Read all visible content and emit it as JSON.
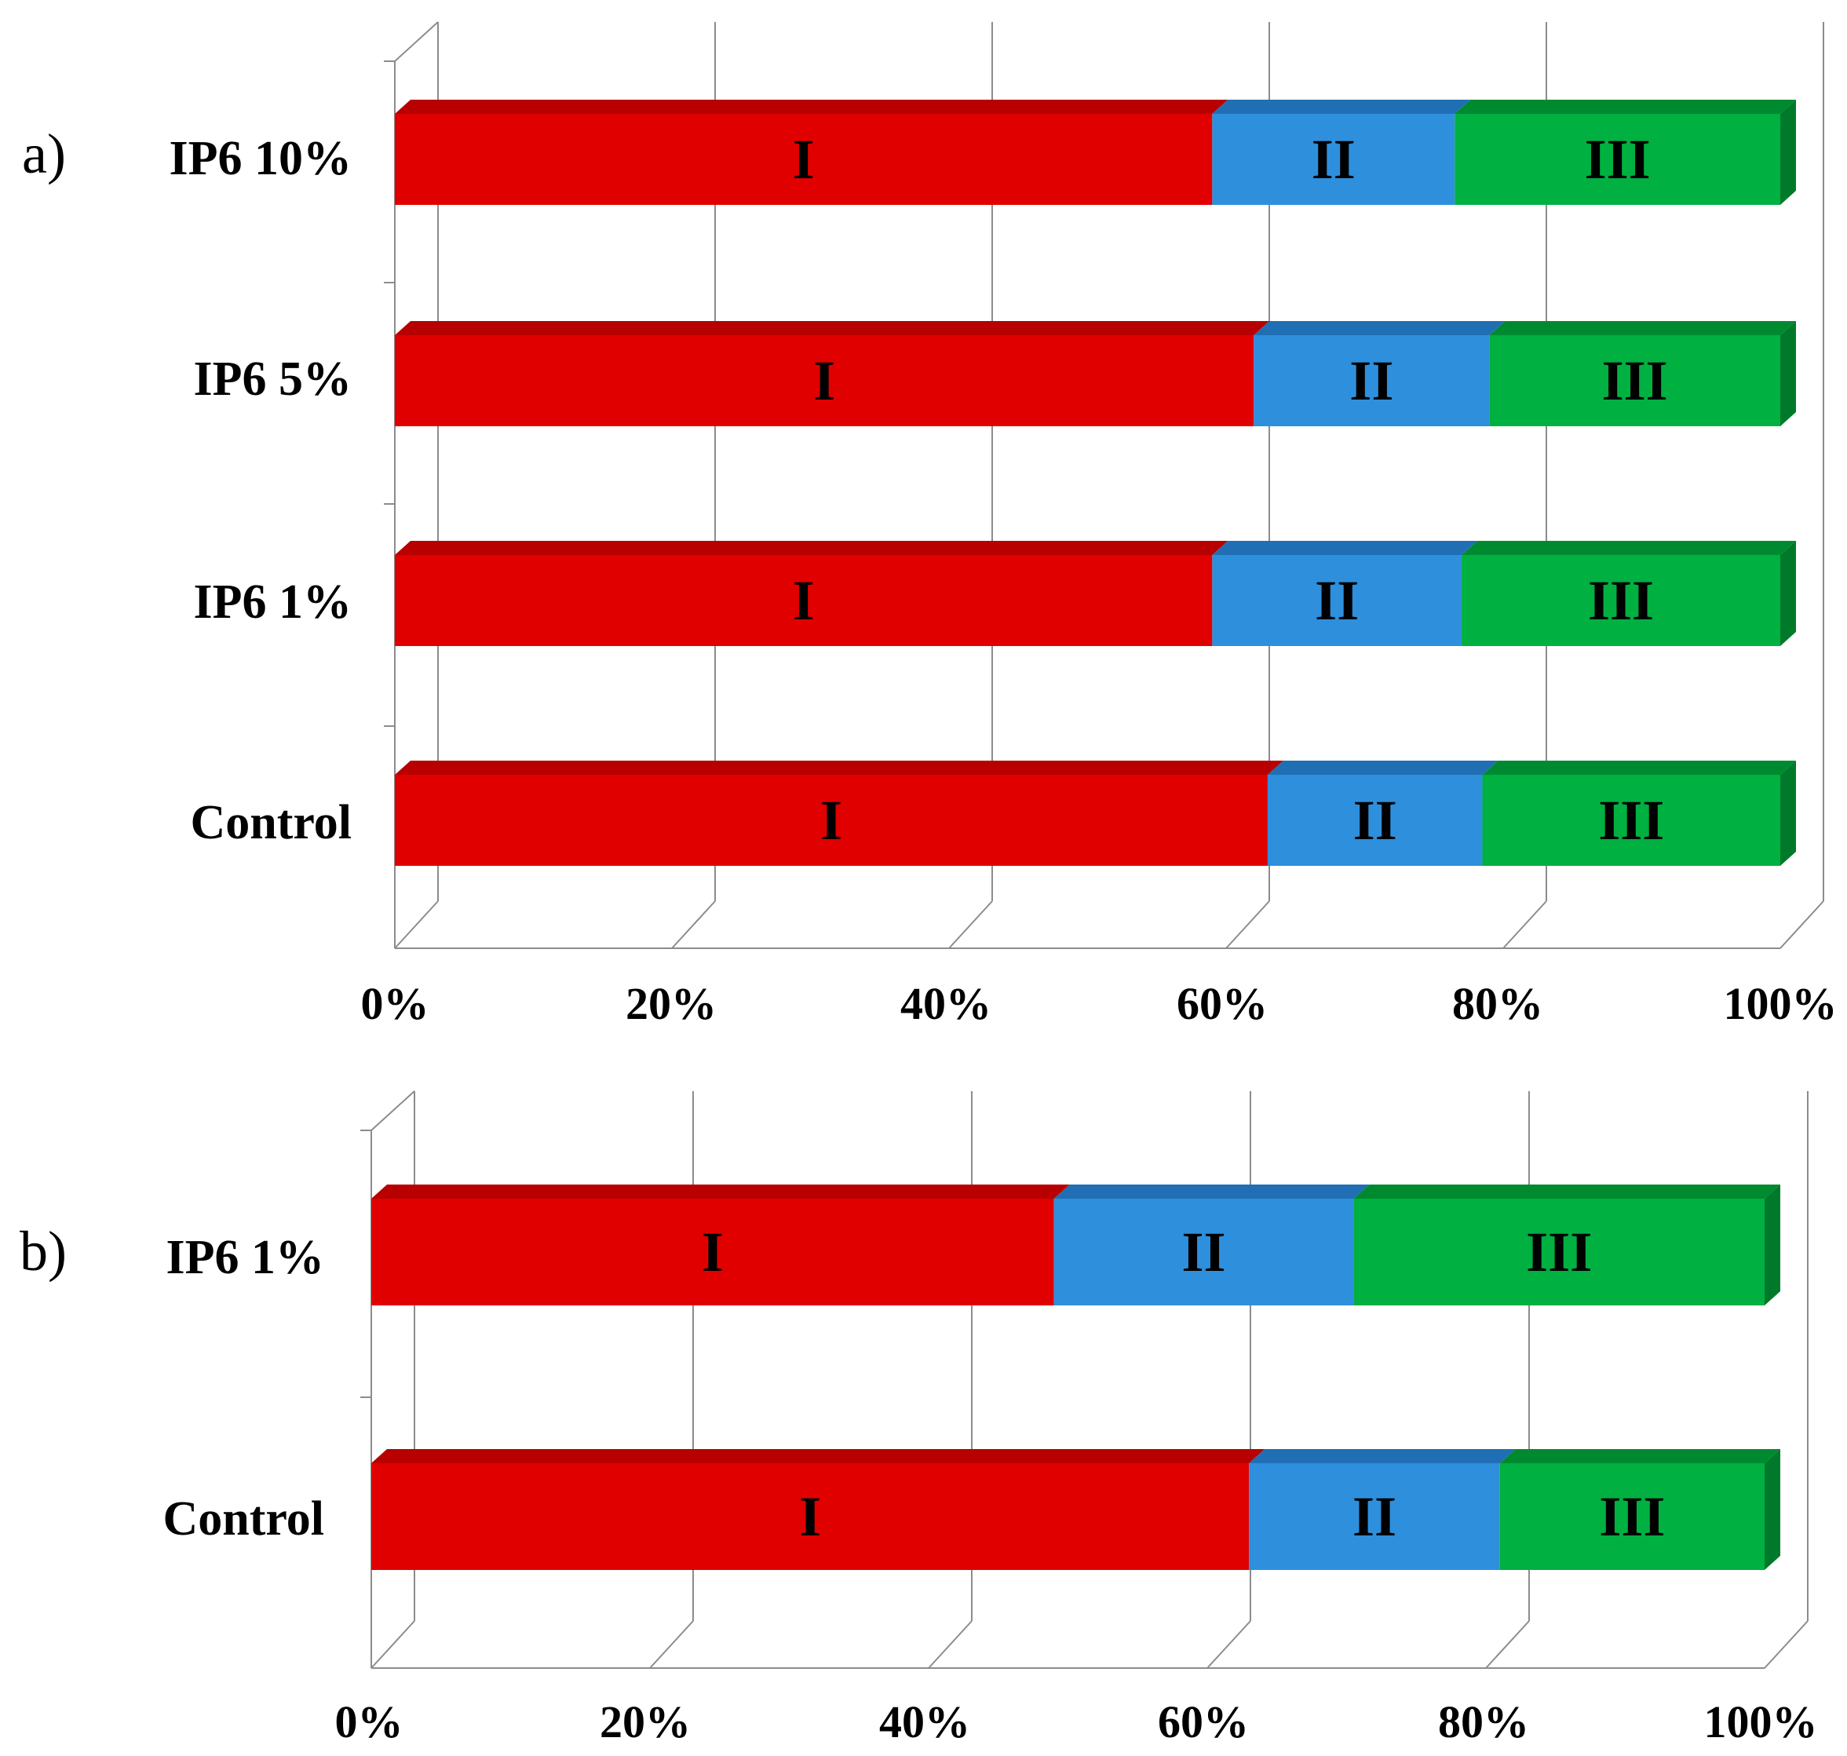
{
  "chart_data": [
    {
      "type": "bar",
      "orientation": "horizontal",
      "stacked": "percent",
      "panel_label": "a)",
      "categories": [
        "Control",
        "IP6 1%",
        "IP6 5%",
        "IP6 10%"
      ],
      "series": [
        {
          "name": "I",
          "values": [
            63,
            59,
            62,
            59
          ]
        },
        {
          "name": "II",
          "values": [
            15.5,
            18,
            17,
            17.5
          ]
        },
        {
          "name": "III",
          "values": [
            21.5,
            23,
            21,
            23.5
          ]
        }
      ],
      "xlim": [
        0,
        100
      ],
      "xticks": [
        "0%",
        "20%",
        "40%",
        "60%",
        "80%",
        "100%"
      ],
      "grid": true,
      "style": "3d"
    },
    {
      "type": "bar",
      "orientation": "horizontal",
      "stacked": "percent",
      "panel_label": "b)",
      "categories": [
        "Control",
        "IP6 1%"
      ],
      "series": [
        {
          "name": "I",
          "values": [
            63,
            49
          ]
        },
        {
          "name": "II",
          "values": [
            18,
            21.5
          ]
        },
        {
          "name": "III",
          "values": [
            19,
            29.5
          ]
        }
      ],
      "xlim": [
        0,
        100
      ],
      "xticks": [
        "0%",
        "20%",
        "40%",
        "60%",
        "80%",
        "100%"
      ],
      "grid": true,
      "style": "3d"
    }
  ],
  "colors": {
    "I": {
      "front": "#e00000",
      "top": "#b80000",
      "side": "#a00000"
    },
    "II": {
      "front": "#2e8fdc",
      "top": "#206fb4",
      "side": "#1a5f9a"
    },
    "III": {
      "front": "#00b040",
      "top": "#008a30",
      "side": "#007a2a"
    },
    "grid": "#8c8c8c"
  }
}
